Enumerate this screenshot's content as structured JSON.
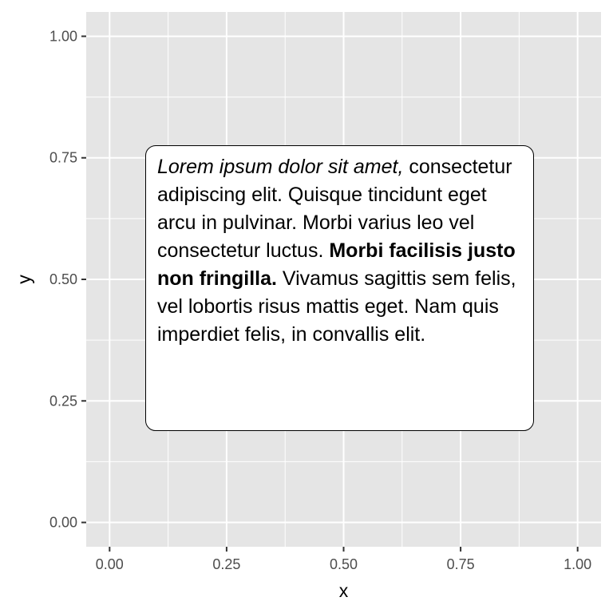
{
  "chart_data": {
    "type": "scatter",
    "x": [],
    "y": [],
    "xlabel": "x",
    "ylabel": "y",
    "xlim": [
      -0.05,
      1.05
    ],
    "ylim": [
      -0.05,
      1.05
    ],
    "xticks": [
      0,
      0.25,
      0.5,
      0.75,
      1
    ],
    "yticks": [
      0,
      0.25,
      0.5,
      0.75,
      1
    ],
    "xtick_labels": [
      "0.00",
      "0.25",
      "0.50",
      "0.75",
      "1.00"
    ],
    "ytick_labels": [
      "0.00",
      "0.25",
      "0.50",
      "0.75",
      "1.00"
    ],
    "grid": true,
    "panel_color": "#e5e5e5",
    "grid_color": "#ffffff",
    "annotation": {
      "x_range": [
        0.1,
        0.9
      ],
      "y_range": [
        0.2,
        0.8
      ],
      "text_italic": "Lorem ipsum dolor sit amet,",
      "text_plain_1": " consectetur adipiscing elit. Quisque tincidunt eget arcu in pulvinar. Morbi varius leo vel consectetur luctus. ",
      "text_bold": "Morbi facilisis justo non fringilla.",
      "text_plain_2": " Vivamus sagittis sem felis, vel lobortis risus mattis eget. Nam quis imperdiet felis, in convallis elit."
    }
  }
}
